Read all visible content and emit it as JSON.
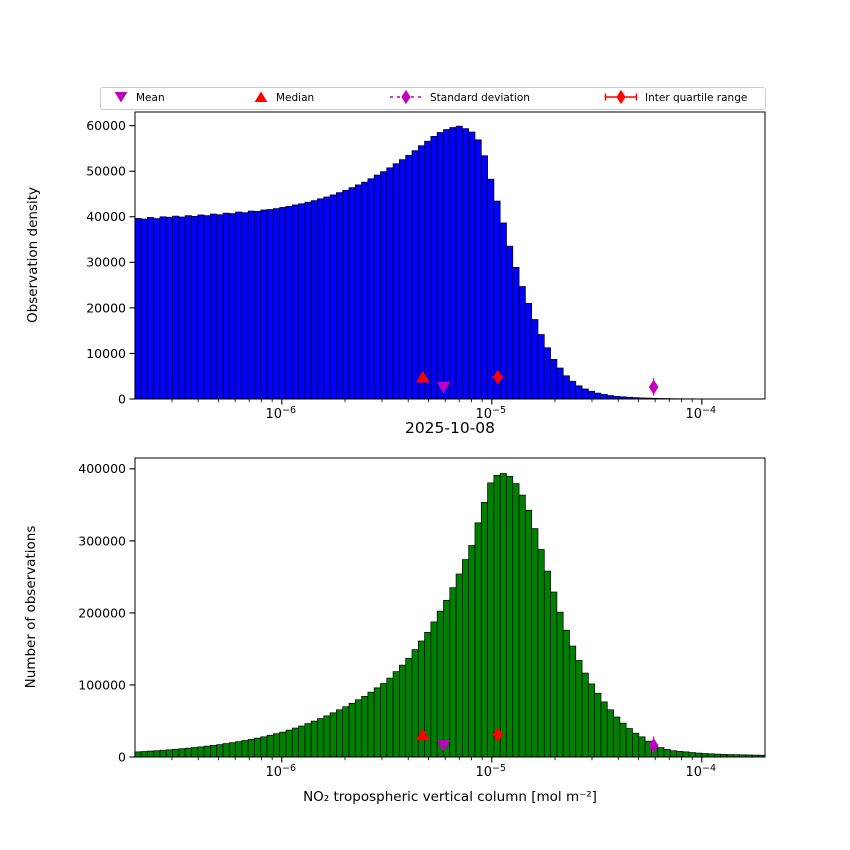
{
  "figure": {
    "title": "2025-10-08",
    "background": "#ffffff"
  },
  "legend": {
    "items": [
      {
        "label": "Mean",
        "marker": "triangle-down",
        "color": "#bf00bf"
      },
      {
        "label": "Median",
        "marker": "triangle-up",
        "color": "#ff0000"
      },
      {
        "label": "Standard deviation",
        "marker": "diamond-dashed",
        "color": "#bf00bf"
      },
      {
        "label": "Inter quartile range",
        "marker": "diamond-solid",
        "color": "#ff0000"
      }
    ]
  },
  "chart_data": [
    {
      "type": "bar",
      "title": "",
      "ylabel": "Observation density",
      "xlabel": "",
      "x_scale": "log",
      "x_range": [
        2e-07,
        0.0002
      ],
      "x_tick_exponents": [
        -6,
        -5,
        -4
      ],
      "x_tick_labels": [
        "10⁻⁶",
        "10⁻⁵",
        "10⁻⁴"
      ],
      "minor_ticks": true,
      "grid": false,
      "ylim": [
        0,
        63000
      ],
      "y_ticks": [
        0,
        10000,
        20000,
        30000,
        40000,
        50000,
        60000
      ],
      "bar_color": "#0000ff",
      "bar_edge_color": "#000000",
      "bins": {
        "log10_center_start": -6.685,
        "log10_step": 0.03,
        "count": 100
      },
      "values": [
        39650,
        39500,
        39850,
        39600,
        40000,
        39900,
        40150,
        39950,
        40250,
        40100,
        40400,
        40250,
        40600,
        40450,
        40800,
        40700,
        41050,
        40900,
        41250,
        41200,
        41500,
        41600,
        41800,
        42050,
        42300,
        42600,
        42850,
        43200,
        43550,
        43950,
        44350,
        44800,
        45300,
        45800,
        46400,
        47000,
        47600,
        48350,
        49150,
        49900,
        50750,
        51650,
        52550,
        53500,
        54500,
        55600,
        56600,
        57650,
        58500,
        59150,
        59600,
        59900,
        59350,
        58600,
        56900,
        53400,
        48250,
        43450,
        38650,
        33550,
        28900,
        24700,
        21000,
        17450,
        14150,
        11250,
        8700,
        6800,
        5100,
        3900,
        2900,
        2200,
        1700,
        1300,
        1000,
        760,
        575,
        485,
        395,
        305,
        240,
        200,
        155,
        115,
        100,
        80,
        65,
        50,
        43,
        35,
        28,
        23,
        19,
        14,
        12,
        10,
        8,
        6,
        5,
        4
      ],
      "markers": [
        {
          "name": "median",
          "shape": "triangle-up",
          "color": "#ff0000",
          "x": 4.7e-06,
          "y": 4800
        },
        {
          "name": "mean",
          "shape": "triangle-down",
          "color": "#bf00bf",
          "x": 5.9e-06,
          "y": 2600
        },
        {
          "name": "iqr",
          "shape": "diamond-solid",
          "color": "#ff0000",
          "x": 1.07e-05,
          "y": 4800
        },
        {
          "name": "std",
          "shape": "diamond-dashed",
          "color": "#bf00bf",
          "x": 5.9e-05,
          "y": 2600
        }
      ]
    },
    {
      "type": "bar",
      "title": "2025-10-08",
      "ylabel": "Number of observations",
      "xlabel": "NO₂ tropospheric vertical column [mol m⁻²]",
      "x_scale": "log",
      "x_range": [
        2e-07,
        0.0002
      ],
      "x_tick_exponents": [
        -6,
        -5,
        -4
      ],
      "x_tick_labels": [
        "10⁻⁶",
        "10⁻⁵",
        "10⁻⁴"
      ],
      "minor_ticks": true,
      "grid": false,
      "ylim": [
        0,
        415000
      ],
      "y_ticks": [
        0,
        100000,
        200000,
        300000,
        400000
      ],
      "bar_color": "#008000",
      "bar_edge_color": "#000000",
      "bins": {
        "log10_center_start": -6.685,
        "log10_step": 0.03,
        "count": 100
      },
      "values": [
        7100,
        7600,
        8200,
        8700,
        9400,
        10000,
        10700,
        11500,
        12300,
        13100,
        14000,
        15100,
        16100,
        17200,
        18600,
        19900,
        21300,
        22900,
        24500,
        26200,
        28000,
        30200,
        32300,
        34500,
        37300,
        40200,
        43000,
        46400,
        49800,
        53300,
        57100,
        61300,
        65500,
        69800,
        74600,
        79400,
        84200,
        90000,
        96000,
        102000,
        109500,
        118500,
        127500,
        137000,
        149000,
        161000,
        173000,
        187500,
        202500,
        217500,
        235000,
        254000,
        274000,
        293500,
        325000,
        353500,
        380500,
        391000,
        393500,
        389500,
        379500,
        363500,
        342500,
        317000,
        288000,
        258000,
        229000,
        201000,
        176000,
        154000,
        134000,
        116500,
        101500,
        88500,
        76500,
        65500,
        55500,
        47000,
        39500,
        33000,
        28000,
        22000,
        17000,
        13000,
        10500,
        8750,
        7750,
        7150,
        6150,
        5450,
        4850,
        4400,
        4000,
        3650,
        3400,
        3200,
        3050,
        2850,
        2650,
        2500
      ],
      "markers": [
        {
          "name": "median",
          "shape": "triangle-up",
          "color": "#ff0000",
          "x": 4.7e-06,
          "y": 31000
        },
        {
          "name": "mean",
          "shape": "triangle-down",
          "color": "#bf00bf",
          "x": 5.9e-06,
          "y": 16000
        },
        {
          "name": "iqr",
          "shape": "diamond-solid",
          "color": "#ff0000",
          "x": 1.07e-05,
          "y": 31000
        },
        {
          "name": "std",
          "shape": "diamond-dashed",
          "color": "#bf00bf",
          "x": 5.9e-05,
          "y": 16000
        }
      ]
    }
  ]
}
